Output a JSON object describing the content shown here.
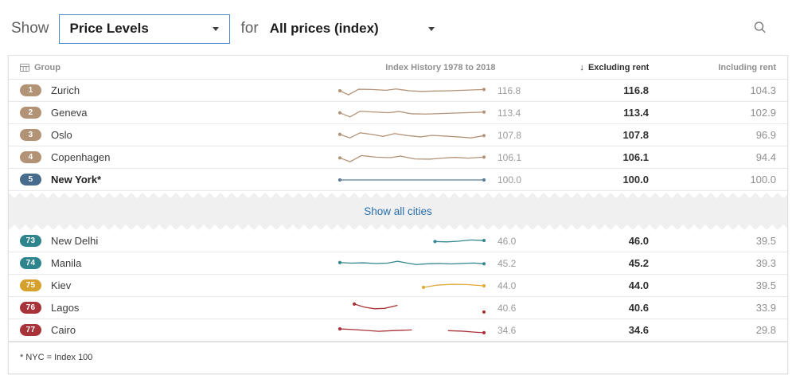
{
  "toolbar": {
    "show_label": "Show",
    "metric_dropdown": {
      "value": "Price Levels"
    },
    "for_label": "for",
    "category_dropdown": {
      "value": "All prices (index)"
    }
  },
  "table": {
    "headers": {
      "group": "Group",
      "history": "Index History 1978 to 2018",
      "sort_icon": "↓",
      "excluding": "Excluding rent",
      "including": "Including rent"
    },
    "show_all_label": "Show all cities",
    "footnote": "* NYC = Index 100",
    "top_rows": [
      {
        "rank": "1",
        "city": "Zurich",
        "bold": false,
        "badge_color": "#b29376",
        "spark_value": "116.8",
        "excluding": "116.8",
        "including": "104.3",
        "spark": {
          "color": "#b49478",
          "segments": [
            {
              "points": [
                [
                  0,
                  50
                ],
                [
                  6,
                  82
                ],
                [
                  13,
                  38
                ],
                [
                  22,
                  40
                ],
                [
                  32,
                  46
                ],
                [
                  39,
                  36
                ],
                [
                  48,
                  50
                ],
                [
                  57,
                  55
                ],
                [
                  66,
                  52
                ],
                [
                  76,
                  50
                ],
                [
                  86,
                  46
                ],
                [
                  100,
                  40
                ]
              ],
              "dot_start": true,
              "dot_end": true
            }
          ],
          "dots": []
        }
      },
      {
        "rank": "2",
        "city": "Geneva",
        "bold": false,
        "badge_color": "#b29376",
        "spark_value": "113.4",
        "excluding": "113.4",
        "including": "102.9",
        "spark": {
          "color": "#b49478",
          "segments": [
            {
              "points": [
                [
                  0,
                  48
                ],
                [
                  7,
                  80
                ],
                [
                  14,
                  36
                ],
                [
                  24,
                  42
                ],
                [
                  34,
                  47
                ],
                [
                  41,
                  38
                ],
                [
                  50,
                  56
                ],
                [
                  60,
                  58
                ],
                [
                  70,
                  54
                ],
                [
                  80,
                  50
                ],
                [
                  90,
                  46
                ],
                [
                  100,
                  42
                ]
              ],
              "dot_start": true,
              "dot_end": true
            }
          ],
          "dots": []
        }
      },
      {
        "rank": "3",
        "city": "Oslo",
        "bold": false,
        "badge_color": "#b29376",
        "spark_value": "107.8",
        "excluding": "107.8",
        "including": "96.9",
        "spark": {
          "color": "#b49478",
          "segments": [
            {
              "points": [
                [
                  0,
                  42
                ],
                [
                  7,
                  70
                ],
                [
                  14,
                  30
                ],
                [
                  23,
                  44
                ],
                [
                  30,
                  58
                ],
                [
                  38,
                  36
                ],
                [
                  47,
                  52
                ],
                [
                  56,
                  62
                ],
                [
                  64,
                  50
                ],
                [
                  73,
                  56
                ],
                [
                  82,
                  62
                ],
                [
                  91,
                  70
                ],
                [
                  100,
                  52
                ]
              ],
              "dot_start": true,
              "dot_end": true
            }
          ],
          "dots": []
        }
      },
      {
        "rank": "4",
        "city": "Copenhagen",
        "bold": false,
        "badge_color": "#b29376",
        "spark_value": "106.1",
        "excluding": "106.1",
        "including": "94.4",
        "spark": {
          "color": "#b49478",
          "segments": [
            {
              "points": [
                [
                  0,
                  52
                ],
                [
                  7,
                  82
                ],
                [
                  15,
                  34
                ],
                [
                  25,
                  46
                ],
                [
                  35,
                  50
                ],
                [
                  42,
                  38
                ],
                [
                  52,
                  60
                ],
                [
                  62,
                  62
                ],
                [
                  71,
                  54
                ],
                [
                  80,
                  48
                ],
                [
                  89,
                  54
                ],
                [
                  100,
                  46
                ]
              ],
              "dot_start": true,
              "dot_end": true
            }
          ],
          "dots": []
        }
      },
      {
        "rank": "5",
        "city": "New York*",
        "bold": true,
        "badge_color": "#476b8c",
        "spark_value": "100.0",
        "excluding": "100.0",
        "including": "100.0",
        "spark": {
          "color": "#5a7d99",
          "segments": [
            {
              "points": [
                [
                  0,
                  50
                ],
                [
                  100,
                  50
                ]
              ],
              "dot_start": true,
              "dot_end": true
            }
          ],
          "dots": []
        }
      }
    ],
    "bottom_rows": [
      {
        "rank": "73",
        "city": "New Delhi",
        "bold": false,
        "badge_color": "#2e858d",
        "spark_value": "46.0",
        "excluding": "46.0",
        "including": "39.5",
        "spark": {
          "color": "#338790",
          "segments": [
            {
              "points": [
                [
                  66,
                  52
                ],
                [
                  74,
                  55
                ],
                [
                  82,
                  50
                ],
                [
                  91,
                  40
                ],
                [
                  100,
                  44
                ]
              ],
              "dot_start": true,
              "dot_end": true
            }
          ],
          "dots": []
        }
      },
      {
        "rank": "74",
        "city": "Manila",
        "bold": false,
        "badge_color": "#2e858d",
        "spark_value": "45.2",
        "excluding": "45.2",
        "including": "39.3",
        "spark": {
          "color": "#338790",
          "segments": [
            {
              "points": [
                [
                  0,
                  42
                ],
                [
                  8,
                  47
                ],
                [
                  16,
                  44
                ],
                [
                  25,
                  50
                ],
                [
                  33,
                  47
                ],
                [
                  40,
                  32
                ],
                [
                  47,
                  47
                ],
                [
                  53,
                  58
                ],
                [
                  61,
                  52
                ],
                [
                  69,
                  49
                ],
                [
                  77,
                  53
                ],
                [
                  85,
                  49
                ],
                [
                  93,
                  46
                ],
                [
                  100,
                  52
                ]
              ],
              "dot_start": true,
              "dot_end": true
            }
          ],
          "dots": []
        }
      },
      {
        "rank": "75",
        "city": "Kiev",
        "bold": false,
        "badge_color": "#d6a02c",
        "spark_value": "44.0",
        "excluding": "44.0",
        "including": "39.5",
        "spark": {
          "color": "#e0ab38",
          "segments": [
            {
              "points": [
                [
                  58,
                  62
                ],
                [
                  68,
                  44
                ],
                [
                  78,
                  38
                ],
                [
                  88,
                  40
                ],
                [
                  100,
                  50
                ]
              ],
              "dot_start": true,
              "dot_end": true
            }
          ],
          "dots": []
        }
      },
      {
        "rank": "76",
        "city": "Lagos",
        "bold": false,
        "badge_color": "#a8343a",
        "spark_value": "40.6",
        "excluding": "40.6",
        "including": "33.9",
        "spark": {
          "color": "#aa3339",
          "segments": [
            {
              "points": [
                [
                  10,
                  18
                ],
                [
                  17,
                  42
                ],
                [
                  24,
                  55
                ],
                [
                  31,
                  52
                ],
                [
                  40,
                  28
                ]
              ],
              "dot_start": true,
              "dot_end": false
            }
          ],
          "dots": [
            [
              100,
              80
            ]
          ]
        }
      },
      {
        "rank": "77",
        "city": "Cairo",
        "bold": false,
        "badge_color": "#a8343a",
        "spark_value": "34.6",
        "excluding": "34.6",
        "including": "29.8",
        "spark": {
          "color": "#aa3339",
          "segments": [
            {
              "points": [
                [
                  0,
                  38
                ],
                [
                  9,
                  43
                ],
                [
                  18,
                  50
                ],
                [
                  27,
                  57
                ],
                [
                  36,
                  52
                ],
                [
                  50,
                  46
                ]
              ],
              "dot_start": true,
              "dot_end": false
            },
            {
              "points": [
                [
                  75,
                  52
                ],
                [
                  85,
                  56
                ],
                [
                  94,
                  64
                ],
                [
                  100,
                  68
                ]
              ],
              "dot_start": false,
              "dot_end": true
            }
          ],
          "dots": []
        }
      }
    ]
  }
}
